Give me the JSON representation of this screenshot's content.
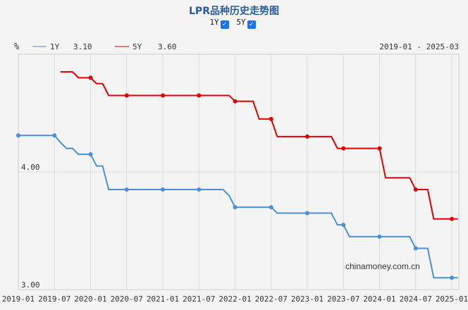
{
  "title": "LPR品种历史走势图",
  "toggles": [
    {
      "label": "1Y",
      "checked": true
    },
    {
      "label": "5Y",
      "checked": true
    }
  ],
  "legend": {
    "unit": "%",
    "items": [
      {
        "label": "1Y",
        "value": "3.10",
        "color": "#4a90d9"
      },
      {
        "label": "5Y",
        "value": "3.60",
        "color": "#e00000"
      }
    ],
    "range": "2019-01 - 2025-03"
  },
  "watermark": "chinamoney.com.cn",
  "chart_data": {
    "type": "line",
    "x_start": "2019-01",
    "x_frequency": "monthly",
    "ylim": [
      3,
      5
    ],
    "y_ticks": [
      "3.00",
      "4.00"
    ],
    "x_ticks": [
      "2019-01",
      "2019-07",
      "2020-01",
      "2020-07",
      "2021-01",
      "2021-07",
      "2022-01",
      "2022-07",
      "2023-01",
      "2023-07",
      "2024-01",
      "2024-07",
      "2025-01"
    ],
    "grid": true,
    "series": [
      {
        "name": "1Y",
        "color": "#4a90d9",
        "values": [
          4.31,
          4.31,
          4.31,
          4.31,
          4.31,
          4.31,
          4.31,
          4.25,
          4.2,
          4.2,
          4.15,
          4.15,
          4.15,
          4.05,
          4.05,
          3.85,
          3.85,
          3.85,
          3.85,
          3.85,
          3.85,
          3.85,
          3.85,
          3.85,
          3.85,
          3.85,
          3.85,
          3.85,
          3.85,
          3.85,
          3.85,
          3.85,
          3.85,
          3.85,
          3.85,
          3.8,
          3.7,
          3.7,
          3.7,
          3.7,
          3.7,
          3.7,
          3.7,
          3.65,
          3.65,
          3.65,
          3.65,
          3.65,
          3.65,
          3.65,
          3.65,
          3.65,
          3.65,
          3.55,
          3.55,
          3.45,
          3.45,
          3.45,
          3.45,
          3.45,
          3.45,
          3.45,
          3.45,
          3.45,
          3.45,
          3.45,
          3.35,
          3.35,
          3.35,
          3.1,
          3.1,
          3.1,
          3.1,
          3.1
        ]
      },
      {
        "name": "5Y",
        "color": "#e00000",
        "values": [
          null,
          null,
          null,
          null,
          null,
          null,
          null,
          4.85,
          4.85,
          4.85,
          4.8,
          4.8,
          4.8,
          4.75,
          4.75,
          4.65,
          4.65,
          4.65,
          4.65,
          4.65,
          4.65,
          4.65,
          4.65,
          4.65,
          4.65,
          4.65,
          4.65,
          4.65,
          4.65,
          4.65,
          4.65,
          4.65,
          4.65,
          4.65,
          4.65,
          4.65,
          4.6,
          4.6,
          4.6,
          4.6,
          4.45,
          4.45,
          4.45,
          4.3,
          4.3,
          4.3,
          4.3,
          4.3,
          4.3,
          4.3,
          4.3,
          4.3,
          4.3,
          4.2,
          4.2,
          4.2,
          4.2,
          4.2,
          4.2,
          4.2,
          4.2,
          3.95,
          3.95,
          3.95,
          3.95,
          3.95,
          3.85,
          3.85,
          3.85,
          3.6,
          3.6,
          3.6,
          3.6,
          3.6
        ]
      }
    ]
  }
}
